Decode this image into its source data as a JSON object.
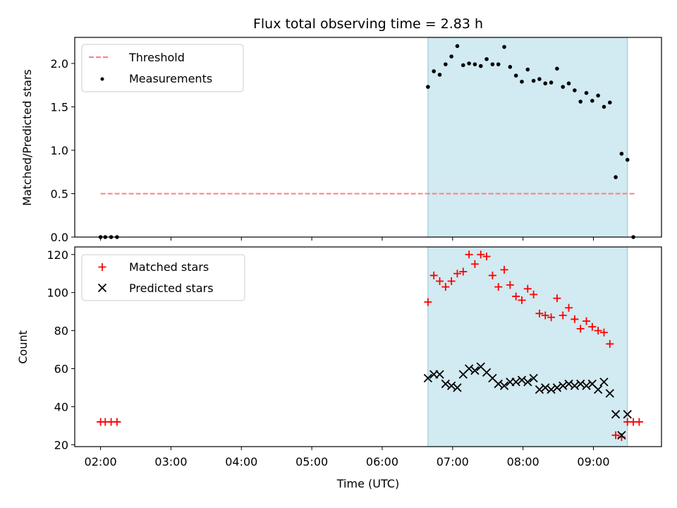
{
  "chart_data": [
    {
      "type": "scatter",
      "title": "Flux total observing time = 2.83 h",
      "ylabel": "Matched/Predicted stars",
      "xlim": [
        "01:38",
        "09:58"
      ],
      "ylim": [
        0,
        2.3
      ],
      "yticks": [
        "0.0",
        "0.5",
        "1.0",
        "1.5",
        "2.0"
      ],
      "shaded_span": {
        "start": "06:39",
        "end": "09:29",
        "color": "#add8e6"
      },
      "legend_position": "upper-left",
      "series": [
        {
          "name": "Threshold",
          "kind": "dashed-line",
          "color": "#ff7f7f",
          "x": [
            "02:00",
            "09:35"
          ],
          "y": [
            0.5,
            0.5
          ]
        },
        {
          "name": "Measurements",
          "kind": "scatter-dot",
          "color": "#000000",
          "x": [
            "02:00",
            "02:04",
            "02:09",
            "02:14",
            "06:39",
            "06:44",
            "06:49",
            "06:54",
            "06:59",
            "07:04",
            "07:09",
            "07:14",
            "07:19",
            "07:24",
            "07:29",
            "07:34",
            "07:39",
            "07:44",
            "07:49",
            "07:54",
            "07:59",
            "08:04",
            "08:09",
            "08:14",
            "08:19",
            "08:24",
            "08:29",
            "08:34",
            "08:39",
            "08:44",
            "08:49",
            "08:54",
            "08:59",
            "09:04",
            "09:09",
            "09:14",
            "09:19",
            "09:24",
            "09:29",
            "09:34"
          ],
          "y": [
            0,
            0,
            0,
            0,
            1.73,
            1.91,
            1.87,
            1.99,
            2.08,
            2.2,
            1.98,
            2.0,
            1.99,
            1.97,
            2.05,
            1.99,
            1.99,
            2.19,
            1.96,
            1.86,
            1.79,
            1.93,
            1.8,
            1.82,
            1.77,
            1.78,
            1.94,
            1.73,
            1.77,
            1.69,
            1.56,
            1.66,
            1.57,
            1.63,
            1.5,
            1.55,
            0.69,
            0.96,
            0.89,
            0
          ]
        }
      ]
    },
    {
      "type": "scatter",
      "xlabel": "Time (UTC)",
      "ylabel": "Count",
      "xlim": [
        "01:38",
        "09:58"
      ],
      "ylim": [
        19,
        124
      ],
      "yticks": [
        "20",
        "40",
        "60",
        "80",
        "100",
        "120"
      ],
      "xticks": [
        "02:00",
        "03:00",
        "04:00",
        "05:00",
        "06:00",
        "07:00",
        "08:00",
        "09:00"
      ],
      "shaded_span": {
        "start": "06:39",
        "end": "09:29",
        "color": "#add8e6"
      },
      "legend_position": "upper-left",
      "series": [
        {
          "name": "Matched stars",
          "marker": "+",
          "color": "#ff0000",
          "x": [
            "02:00",
            "02:04",
            "02:09",
            "02:14",
            "06:39",
            "06:44",
            "06:49",
            "06:54",
            "06:59",
            "07:04",
            "07:09",
            "07:14",
            "07:19",
            "07:24",
            "07:29",
            "07:34",
            "07:39",
            "07:44",
            "07:49",
            "07:54",
            "07:59",
            "08:04",
            "08:09",
            "08:14",
            "08:19",
            "08:24",
            "08:29",
            "08:34",
            "08:39",
            "08:44",
            "08:49",
            "08:54",
            "08:59",
            "09:04",
            "09:09",
            "09:14",
            "09:19",
            "09:24",
            "09:29",
            "09:34",
            "09:39"
          ],
          "y": [
            32,
            32,
            32,
            32,
            95,
            109,
            106,
            103,
            106,
            110,
            111,
            120,
            115,
            120,
            119,
            109,
            103,
            112,
            104,
            98,
            96,
            102,
            99,
            89,
            88,
            87,
            97,
            88,
            92,
            86,
            81,
            85,
            82,
            80,
            79,
            73,
            25,
            24,
            32,
            32,
            32
          ]
        },
        {
          "name": "Predicted stars",
          "marker": "x",
          "color": "#000000",
          "x": [
            "06:39",
            "06:44",
            "06:49",
            "06:54",
            "06:59",
            "07:04",
            "07:09",
            "07:14",
            "07:19",
            "07:24",
            "07:29",
            "07:34",
            "07:39",
            "07:44",
            "07:49",
            "07:54",
            "07:59",
            "08:04",
            "08:09",
            "08:14",
            "08:19",
            "08:24",
            "08:29",
            "08:34",
            "08:39",
            "08:44",
            "08:49",
            "08:54",
            "08:59",
            "09:04",
            "09:09",
            "09:14",
            "09:19",
            "09:24",
            "09:29"
          ],
          "y": [
            55,
            57,
            57,
            52,
            51,
            50,
            57,
            60,
            59,
            61,
            58,
            55,
            52,
            51,
            53,
            53,
            54,
            53,
            55,
            49,
            50,
            49,
            50,
            51,
            52,
            51,
            52,
            51,
            52,
            49,
            53,
            47,
            36,
            25,
            36
          ]
        }
      ]
    }
  ]
}
